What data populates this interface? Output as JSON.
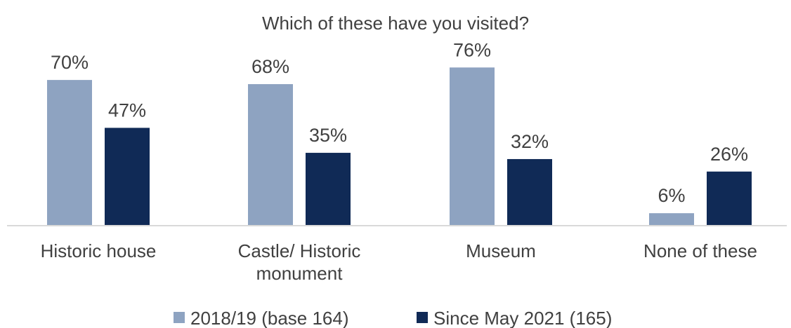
{
  "chart_data": {
    "type": "bar",
    "title": "Which of these have you visited?",
    "categories": [
      [
        "Historic house"
      ],
      [
        "Castle/ Historic",
        "monument"
      ],
      [
        "Museum"
      ],
      [
        "None of these"
      ]
    ],
    "series": [
      {
        "name": "2018/19 (base 164)",
        "values": [
          70,
          68,
          76,
          6
        ],
        "labels": [
          "70%",
          "68%",
          "76%",
          "6%"
        ],
        "color": "#8ea3c1"
      },
      {
        "name": "Since May 2021 (165)",
        "values": [
          47,
          35,
          32,
          26
        ],
        "labels": [
          "47%",
          "35%",
          "32%",
          "26%"
        ],
        "color": "#102a56"
      }
    ],
    "ylim": [
      0,
      100
    ],
    "grid": false,
    "legend": "bottom"
  }
}
